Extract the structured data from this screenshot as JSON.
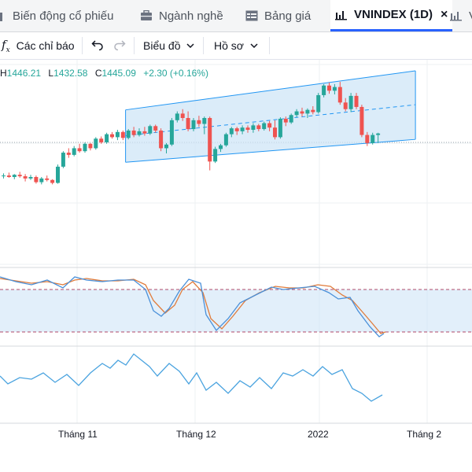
{
  "tabs": [
    {
      "label": "Biến động cổ phiếu",
      "icon": "bar-chart-icon",
      "active": false
    },
    {
      "label": "Ngành nghề",
      "icon": "briefcase-icon",
      "active": false
    },
    {
      "label": "Bảng giá",
      "icon": "table-icon",
      "active": false
    },
    {
      "label": "VNINDEX (1D)",
      "icon": "candlestick-icon",
      "active": true,
      "close": "×"
    },
    {
      "label": "V",
      "icon": "candlestick-icon",
      "active": false
    }
  ],
  "toolbar": {
    "indicators_label": "Các chỉ báo",
    "chart_label": "Biểu đồ",
    "profile_label": "Hồ sơ"
  },
  "ohlc": {
    "h_label": "H",
    "h": "1446.21",
    "l_label": "L",
    "l": "1432.58",
    "c_label": "C",
    "c": "1445.09",
    "change": "+2.30 (+0.16%)"
  },
  "x_axis_labels": [
    "Tháng 11",
    "Tháng 12",
    "2022",
    "Tháng 2"
  ],
  "colors": {
    "up": "#26a69a",
    "down": "#ef5350",
    "channel_fill": "#cfe5f7",
    "channel_line": "#2196f3",
    "stoch_k": "#4a90d9",
    "stoch_d": "#e07b3a",
    "band_line": "#b04a6a",
    "rsi_line": "#4aa3df"
  },
  "chart_data": {
    "type": "candlestick",
    "title": "VNINDEX (1D)",
    "candles_ohlc": [
      [
        1387,
        1391,
        1384,
        1388
      ],
      [
        1388,
        1392,
        1385,
        1386
      ],
      [
        1386,
        1390,
        1383,
        1389
      ],
      [
        1389,
        1393,
        1385,
        1387
      ],
      [
        1387,
        1390,
        1380,
        1384
      ],
      [
        1384,
        1389,
        1382,
        1386
      ],
      [
        1386,
        1388,
        1377,
        1379
      ],
      [
        1379,
        1386,
        1376,
        1384
      ],
      [
        1384,
        1388,
        1380,
        1382
      ],
      [
        1382,
        1383,
        1376,
        1378
      ],
      [
        1378,
        1403,
        1377,
        1400
      ],
      [
        1400,
        1421,
        1398,
        1419
      ],
      [
        1419,
        1425,
        1412,
        1416
      ],
      [
        1416,
        1428,
        1414,
        1425
      ],
      [
        1425,
        1431,
        1419,
        1421
      ],
      [
        1421,
        1433,
        1419,
        1431
      ],
      [
        1431,
        1432,
        1422,
        1425
      ],
      [
        1425,
        1440,
        1423,
        1438
      ],
      [
        1438,
        1441,
        1431,
        1433
      ],
      [
        1433,
        1446,
        1431,
        1444
      ],
      [
        1444,
        1447,
        1438,
        1440
      ],
      [
        1440,
        1450,
        1436,
        1447
      ],
      [
        1447,
        1449,
        1436,
        1439
      ],
      [
        1439,
        1451,
        1437,
        1449
      ],
      [
        1449,
        1454,
        1440,
        1443
      ],
      [
        1443,
        1452,
        1441,
        1448
      ],
      [
        1448,
        1454,
        1442,
        1445
      ],
      [
        1445,
        1457,
        1443,
        1455
      ],
      [
        1455,
        1457,
        1446,
        1449
      ],
      [
        1449,
        1452,
        1421,
        1425
      ],
      [
        1425,
        1432,
        1418,
        1430
      ],
      [
        1430,
        1466,
        1428,
        1463
      ],
      [
        1463,
        1475,
        1460,
        1472
      ],
      [
        1472,
        1478,
        1462,
        1466
      ],
      [
        1466,
        1475,
        1448,
        1451
      ],
      [
        1451,
        1466,
        1448,
        1463
      ],
      [
        1463,
        1469,
        1454,
        1458
      ],
      [
        1458,
        1468,
        1444,
        1466
      ],
      [
        1466,
        1468,
        1395,
        1407
      ],
      [
        1407,
        1427,
        1405,
        1424
      ],
      [
        1424,
        1431,
        1420,
        1429
      ],
      [
        1429,
        1446,
        1427,
        1444
      ],
      [
        1444,
        1454,
        1440,
        1452
      ],
      [
        1452,
        1454,
        1443,
        1448
      ],
      [
        1448,
        1456,
        1444,
        1453
      ],
      [
        1453,
        1456,
        1446,
        1450
      ],
      [
        1450,
        1459,
        1446,
        1456
      ],
      [
        1456,
        1458,
        1448,
        1451
      ],
      [
        1451,
        1461,
        1449,
        1459
      ],
      [
        1459,
        1462,
        1448,
        1453
      ],
      [
        1453,
        1463,
        1437,
        1440
      ],
      [
        1440,
        1467,
        1438,
        1465
      ],
      [
        1465,
        1468,
        1455,
        1460
      ],
      [
        1460,
        1472,
        1458,
        1470
      ],
      [
        1470,
        1478,
        1467,
        1475
      ],
      [
        1475,
        1480,
        1468,
        1472
      ],
      [
        1472,
        1479,
        1466,
        1477
      ],
      [
        1477,
        1482,
        1471,
        1474
      ],
      [
        1474,
        1500,
        1472,
        1497
      ],
      [
        1497,
        1512,
        1494,
        1510
      ],
      [
        1510,
        1514,
        1499,
        1503
      ],
      [
        1503,
        1512,
        1498,
        1508
      ],
      [
        1508,
        1515,
        1484,
        1487
      ],
      [
        1487,
        1493,
        1475,
        1478
      ],
      [
        1478,
        1500,
        1474,
        1496
      ],
      [
        1496,
        1500,
        1478,
        1481
      ],
      [
        1481,
        1484,
        1440,
        1443
      ],
      [
        1443,
        1447,
        1428,
        1432
      ],
      [
        1432,
        1446,
        1430,
        1443
      ],
      [
        1443,
        1446,
        1432,
        1445
      ]
    ],
    "channel": {
      "upper": [
        1477,
        1530
      ],
      "lower": [
        1406,
        1437
      ],
      "mid": [
        1442,
        1484
      ],
      "x_range": [
        24,
        69
      ]
    },
    "oscillator_bands": [
      20,
      80
    ],
    "x_axis_labels": [
      "Tháng 11",
      "Tháng 12",
      "2022",
      "Tháng 2"
    ],
    "grid": true
  }
}
